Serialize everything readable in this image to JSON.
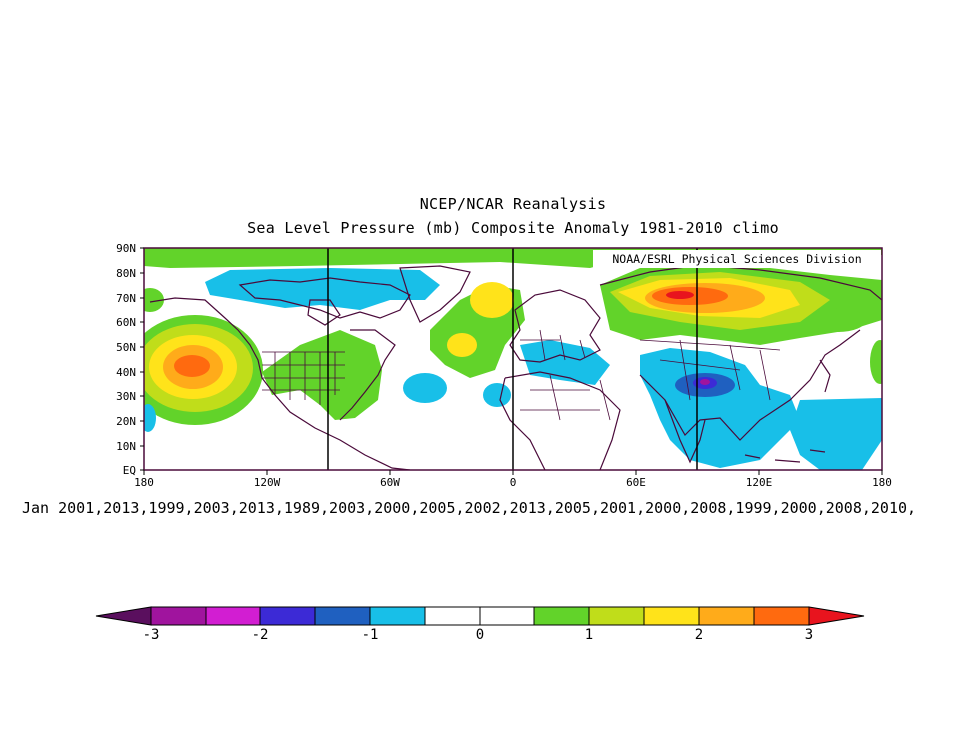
{
  "title_line1": "NCEP/NCAR Reanalysis",
  "title_line2": "Sea Level Pressure (mb) Composite Anomaly 1981-2010 climo",
  "credit": "NOAA/ESRL Physical Sciences Division",
  "composite_years": "Jan 2001,2013,1999,2003,2013,1989,2003,2000,2005,2002,2013,2005,2001,2000,2008,1999,2000,2008,2010,",
  "lat_labels": [
    "90N",
    "80N",
    "70N",
    "60N",
    "50N",
    "40N",
    "30N",
    "20N",
    "10N",
    "EQ"
  ],
  "lon_labels": [
    "180",
    "120W",
    "60W",
    "0",
    "60E",
    "120E",
    "180"
  ],
  "colorbar": {
    "tick_labels": [
      "-3",
      "-2",
      "-1",
      "0",
      "1",
      "2",
      "3"
    ],
    "colors": [
      "#5a0f5e",
      "#a0149e",
      "#d21ed2",
      "#3c2ad6",
      "#1f60c0",
      "#18bfe8",
      "#ffffff",
      "#ffffff",
      "#62d32a",
      "#c0dd1a",
      "#ffe31a",
      "#ffab1a",
      "#ff6a0f",
      "#e8141e"
    ]
  },
  "anomaly_colors": {
    "neg1": "#18bfe8",
    "neg2": "#1f60c0",
    "neg3": "#3c2ad6",
    "neg4": "#a0149e",
    "pos1": "#62d32a",
    "pos2": "#c0dd1a",
    "pos3": "#ffe31a",
    "pos4": "#ffab1a",
    "pos5": "#ff6a0f",
    "pos6": "#e8141e",
    "coast": "#4a0a3a"
  },
  "map_features": [
    "positive anomaly center north Pacific (~40N,155W)",
    "positive anomaly center northern Siberia (~70N,90E)",
    "positive anomaly north Atlantic (~60N,25W)",
    "negative anomaly Tibetan plateau (~38N,85E)",
    "negative anomaly Arctic Canada / Greenland",
    "negative anomaly tropical Indian and west Pacific oceans"
  ]
}
